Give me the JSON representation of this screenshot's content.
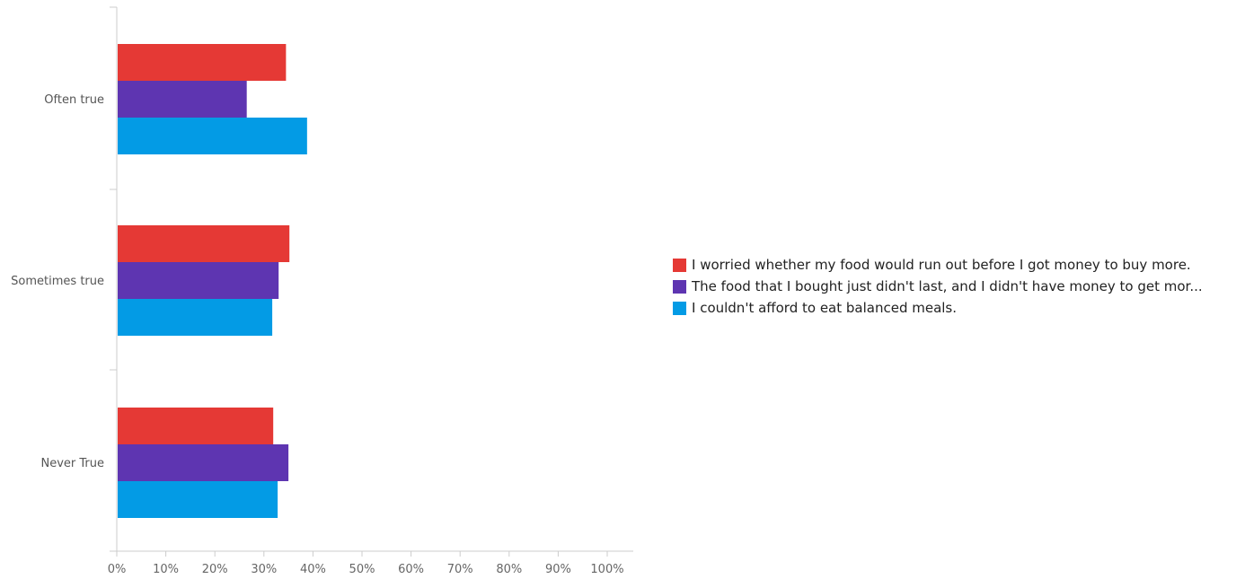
{
  "chart_data": {
    "type": "bar",
    "orientation": "horizontal",
    "categories": [
      "Often true",
      "Sometimes true",
      "Never True"
    ],
    "series": [
      {
        "name": "I worried whether my food would run out before I got money to buy more.",
        "color": "#e53935",
        "values": [
          34.5,
          35.2,
          31.9
        ]
      },
      {
        "name": "The food that I bought just didn't last, and I didn't have money to get mor...",
        "color": "#5e35b1",
        "values": [
          26.5,
          33.0,
          35.0
        ]
      },
      {
        "name": "I couldn't afford to eat balanced meals.",
        "color": "#039be5",
        "values": [
          38.8,
          31.7,
          32.8
        ]
      }
    ],
    "x_ticks": [
      "0%",
      "10%",
      "20%",
      "30%",
      "40%",
      "50%",
      "60%",
      "70%",
      "80%",
      "90%",
      "100%"
    ],
    "xlim": [
      0,
      100
    ],
    "x_unit": "percent",
    "grid": false,
    "legend_position": "right"
  }
}
